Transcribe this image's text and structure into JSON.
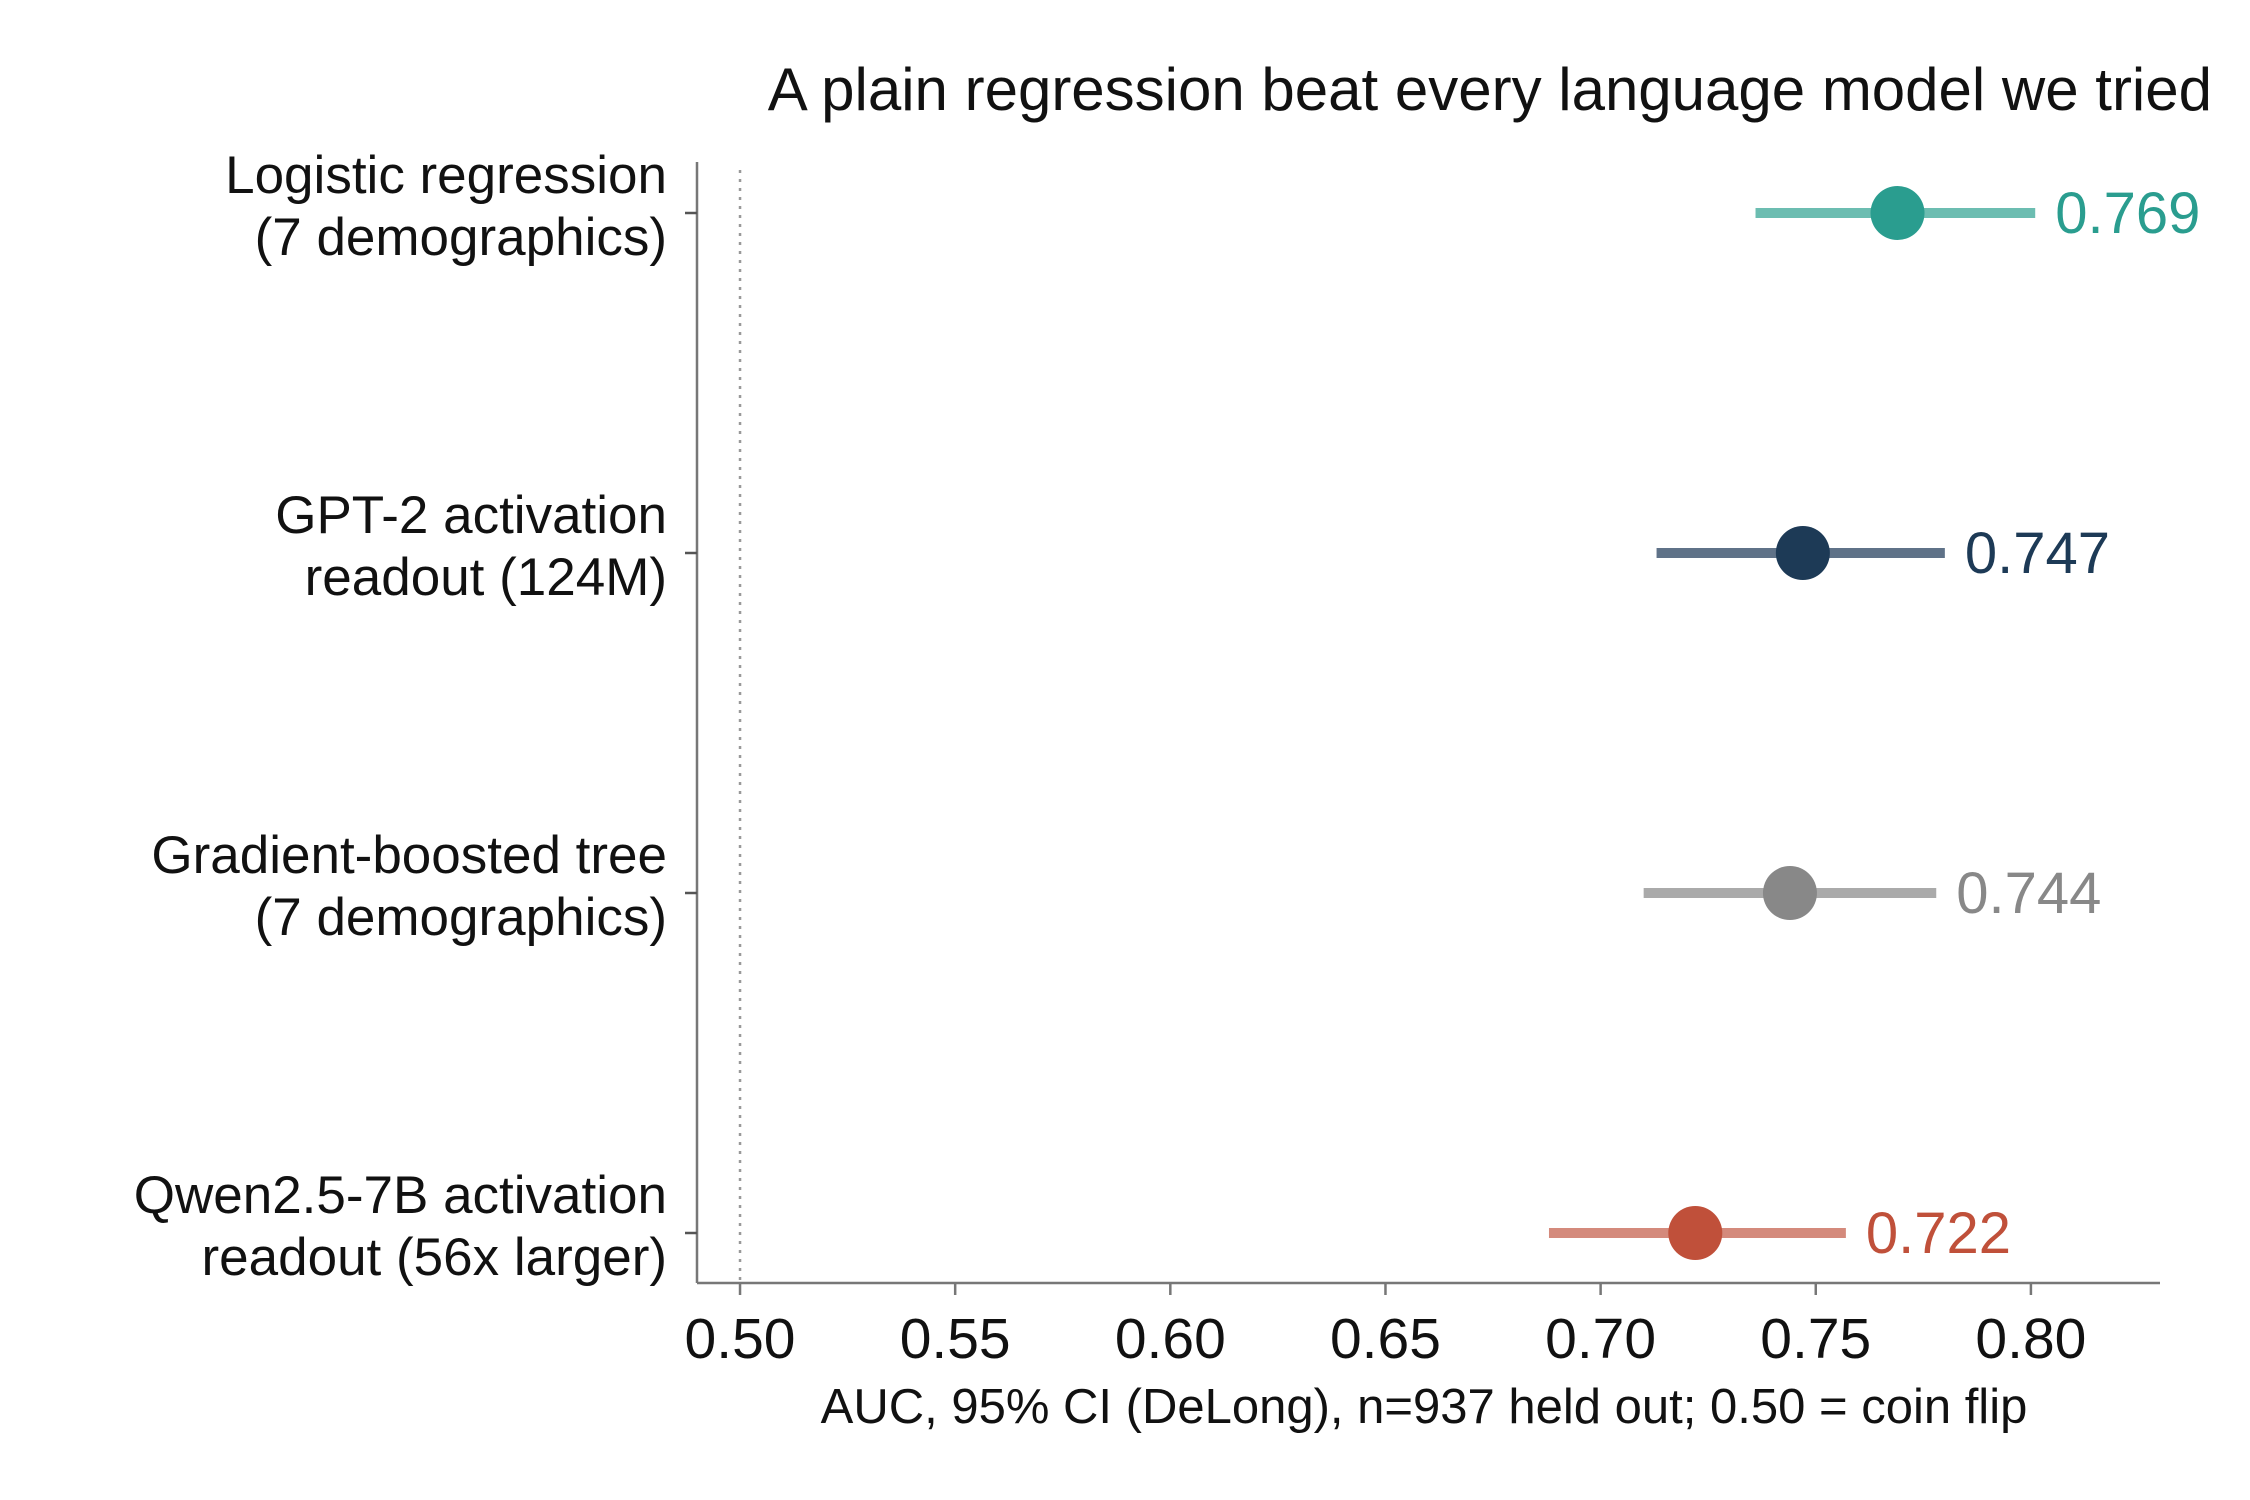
{
  "chart_data": {
    "type": "scatter",
    "subtype": "dot-and-interval",
    "title": "A plain regression beat every language model we tried",
    "xlabel": "AUC, 95% CI (DeLong), n=937 held out; 0.50 = coin flip",
    "ylabel": "",
    "xlim": [
      0.49,
      0.83
    ],
    "xticks": [
      0.5,
      0.55,
      0.6,
      0.65,
      0.7,
      0.75,
      0.8
    ],
    "xtick_labels": [
      "0.50",
      "0.55",
      "0.60",
      "0.65",
      "0.70",
      "0.75",
      "0.80"
    ],
    "reference_line": {
      "x": 0.5,
      "style": "dotted"
    },
    "grid": false,
    "legend": "none",
    "series": [
      {
        "label_lines": [
          "Logistic regression",
          "(7 demographics)"
        ],
        "auc": 0.769,
        "ci_low": 0.736,
        "ci_high": 0.801,
        "value_label": "0.769",
        "point_color": "#2a9d8f",
        "bar_color": "#6cbdb1"
      },
      {
        "label_lines": [
          "GPT-2 activation",
          "readout (124M)"
        ],
        "auc": 0.747,
        "ci_low": 0.713,
        "ci_high": 0.78,
        "value_label": "0.747",
        "point_color": "#1d3a56",
        "bar_color": "#5f7288"
      },
      {
        "label_lines": [
          "Gradient-boosted tree",
          "(7 demographics)"
        ],
        "auc": 0.744,
        "ci_low": 0.71,
        "ci_high": 0.778,
        "value_label": "0.744",
        "point_color": "#888888",
        "bar_color": "#aaaaaa"
      },
      {
        "label_lines": [
          "Qwen2.5-7B activation",
          "readout (56x larger)"
        ],
        "auc": 0.722,
        "ci_low": 0.688,
        "ci_high": 0.757,
        "value_label": "0.722",
        "point_color": "#c0503a",
        "bar_color": "#d48a7c"
      }
    ]
  }
}
